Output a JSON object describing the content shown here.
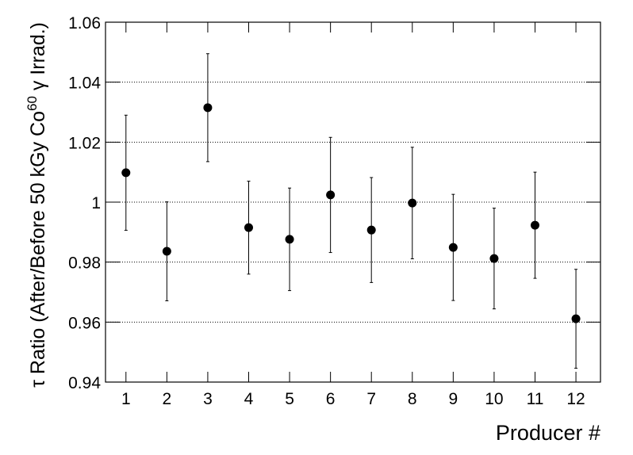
{
  "chart_data": {
    "type": "scatter",
    "x_label": "Producer #",
    "y_label": {
      "text": "τ Ratio (After/Before 50 kGy Co",
      "superscript": "60",
      "suffix": " γ Irrad.)"
    },
    "x": [
      1,
      2,
      3,
      4,
      5,
      6,
      7,
      8,
      9,
      10,
      11,
      12
    ],
    "values": [
      1.0098,
      0.9836,
      1.0315,
      0.9915,
      0.9876,
      1.0024,
      0.9907,
      0.9997,
      0.9849,
      0.9812,
      0.9923,
      0.9611
    ],
    "errors": [
      0.0192,
      0.0165,
      0.018,
      0.0155,
      0.0171,
      0.0192,
      0.0175,
      0.0186,
      0.0177,
      0.0168,
      0.0177,
      0.0165
    ],
    "color": "#000000",
    "xlim": [
      0.5,
      12.6
    ],
    "ylim": [
      0.94,
      1.06
    ],
    "xticks": [
      1,
      2,
      3,
      4,
      5,
      6,
      7,
      8,
      9,
      10,
      11,
      12
    ],
    "yticks": [
      0.94,
      0.96,
      0.98,
      1,
      1.02,
      1.04,
      1.06
    ],
    "grid": true
  }
}
